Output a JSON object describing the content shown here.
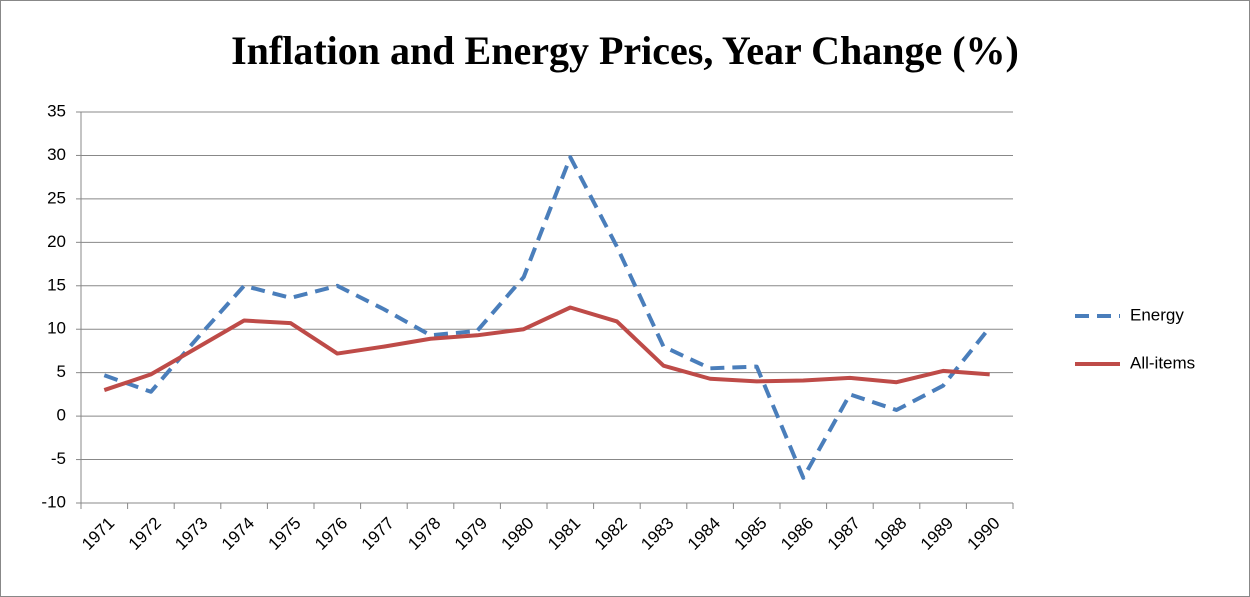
{
  "chart_data": {
    "type": "line",
    "title": "Inflation and Energy Prices, Year Change (%)",
    "categories": [
      "1971",
      "1972",
      "1973",
      "1974",
      "1975",
      "1976",
      "1977",
      "1978",
      "1979",
      "1980",
      "1981",
      "1982",
      "1983",
      "1984",
      "1985",
      "1986",
      "1987",
      "1988",
      "1989",
      "1990"
    ],
    "series": [
      {
        "name": "Energy",
        "color": "#4a7ebb",
        "dash": true,
        "values": [
          4.7,
          2.8,
          9.0,
          15.0,
          13.6,
          15.0,
          12.3,
          9.3,
          9.8,
          16.0,
          29.8,
          19.5,
          8.0,
          5.5,
          5.7,
          -7.1,
          2.5,
          0.7,
          3.5,
          10.2
        ]
      },
      {
        "name": "All-items",
        "color": "#be4b48",
        "dash": false,
        "values": [
          3.0,
          4.8,
          7.9,
          11.0,
          10.7,
          7.2,
          8.0,
          8.9,
          9.3,
          10.0,
          12.5,
          10.9,
          5.8,
          4.3,
          4.0,
          4.1,
          4.4,
          3.9,
          5.2,
          4.8
        ]
      }
    ],
    "ylim": [
      -10,
      35
    ],
    "yticks": [
      -10,
      -5,
      0,
      5,
      10,
      15,
      20,
      25,
      30,
      35
    ],
    "grid": true,
    "legend": "right"
  }
}
